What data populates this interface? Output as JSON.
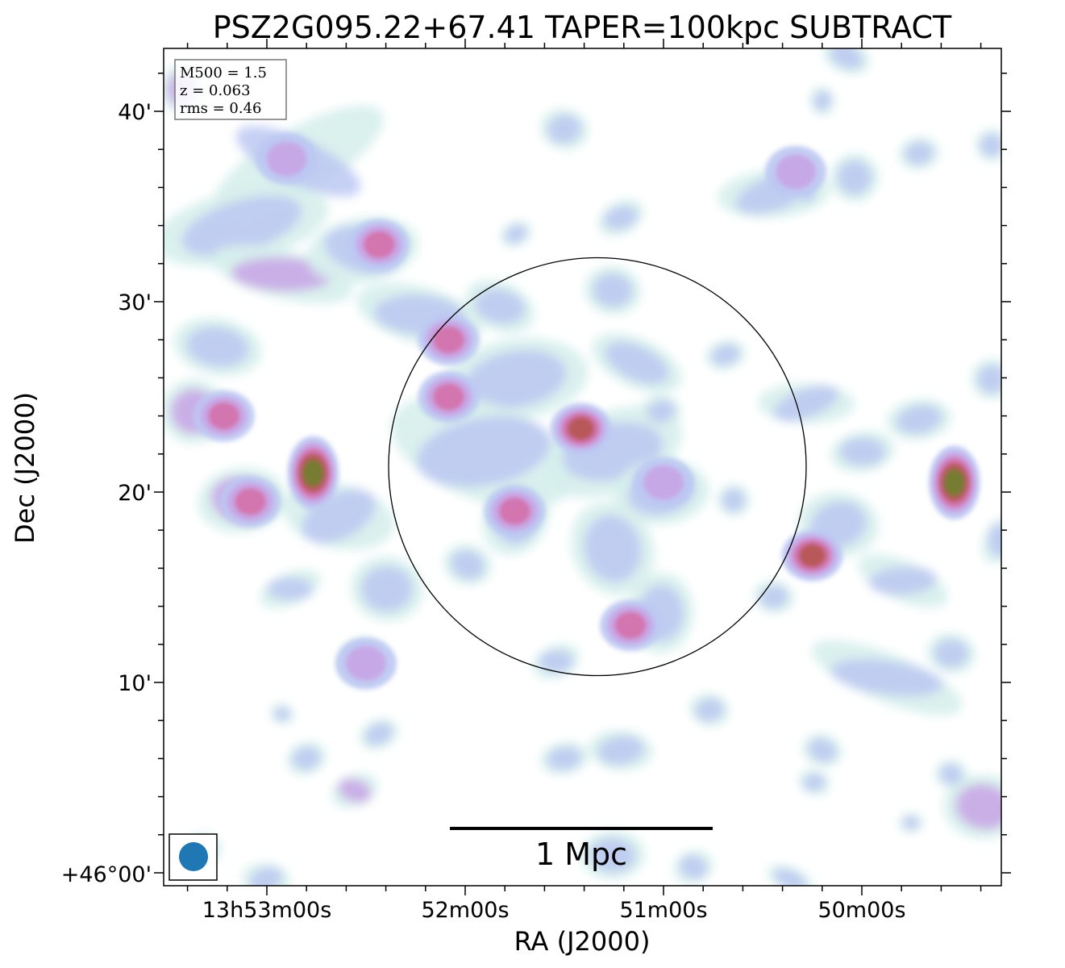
{
  "chart_data": {
    "type": "heatmap",
    "title": "PSZ2G095.22+67.41 TAPER=100kpc SUBTRACT",
    "xlabel": "RA (J2000)",
    "ylabel": "Dec (J2000)",
    "x_ticks": [
      "13h53m00s",
      "52m00s",
      "51m00s",
      "50m00s"
    ],
    "y_ticks": [
      "+46°00'",
      "10'",
      "20'",
      "30'",
      "40'"
    ],
    "annotations": [
      "M500 = 1.5",
      "z = 0.063",
      "rms = 0.46"
    ],
    "scalebar_label": "1 Mpc",
    "grid": false,
    "colormap": [
      "#d6f0ec",
      "#bcc8f2",
      "#c8a4e6",
      "#d46fa8",
      "#b5574f",
      "#6f7f2d"
    ],
    "frame_color": "#000000",
    "beam_color": "#1f77b4",
    "emission_regions": [
      {
        "ra": "13h52m54s",
        "dec": "+46°37'30\"",
        "level": 2
      },
      {
        "ra": "13h52m26s",
        "dec": "+46°33'00\"",
        "level": 3
      },
      {
        "ra": "13h52m05s",
        "dec": "+46°28'00\"",
        "level": 3
      },
      {
        "ra": "13h52m05s",
        "dec": "+46°25'00\"",
        "level": 3
      },
      {
        "ra": "13h53m13s",
        "dec": "+46°24'00\"",
        "level": 3
      },
      {
        "ra": "13h52m46s",
        "dec": "+46°21'00\"",
        "level": 5
      },
      {
        "ra": "13h53m05s",
        "dec": "+46°19'30\"",
        "level": 3
      },
      {
        "ra": "13h51m25s",
        "dec": "+46°23'20\"",
        "level": 4
      },
      {
        "ra": "13h51m45s",
        "dec": "+46°19'00\"",
        "level": 3
      },
      {
        "ra": "13h51m00s",
        "dec": "+46°20'30\"",
        "level": 2
      },
      {
        "ra": "13h50m15s",
        "dec": "+46°16'40\"",
        "level": 4
      },
      {
        "ra": "13h49m32s",
        "dec": "+46°20'30\"",
        "level": 5
      },
      {
        "ra": "13h51m10s",
        "dec": "+46°13'00\"",
        "level": 3
      },
      {
        "ra": "13h52m30s",
        "dec": "+46°11'00\"",
        "level": 2
      },
      {
        "ra": "13h50m20s",
        "dec": "+46°36'50\"",
        "level": 2
      }
    ],
    "circle": {
      "ra": "13h51m20s",
      "dec": "+46°21'20\""
    }
  }
}
